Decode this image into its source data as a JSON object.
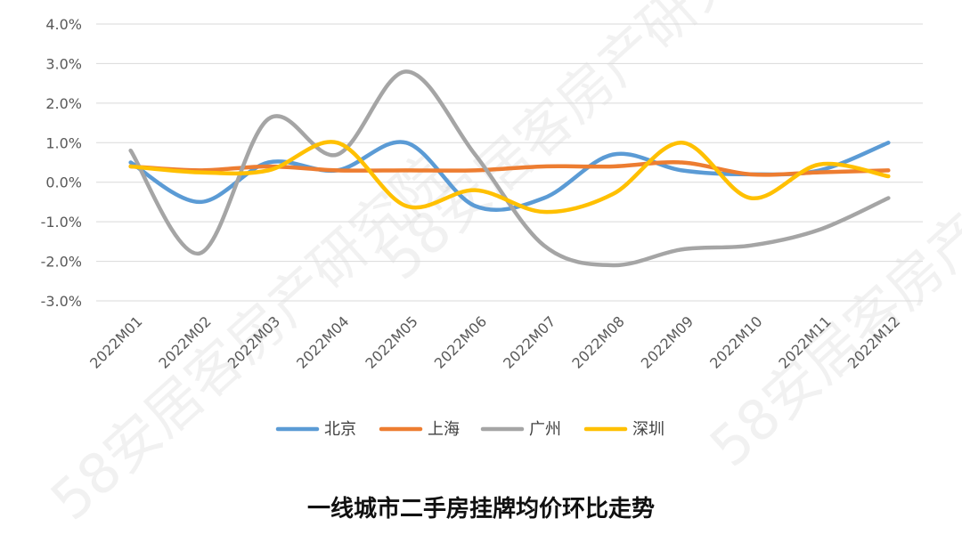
{
  "watermark": "58安居客房产研究院",
  "chart_data": {
    "type": "line",
    "title": "一线城市二手房挂牌均价环比走势",
    "xlabel": "",
    "ylabel": "",
    "ylim": [
      -3.0,
      4.0
    ],
    "yticks": [
      "-3.0%",
      "-2.0%",
      "-1.0%",
      "0.0%",
      "1.0%",
      "2.0%",
      "3.0%",
      "4.0%"
    ],
    "grid": true,
    "legend_position": "bottom",
    "categories": [
      "2022M01",
      "2022M02",
      "2022M03",
      "2022M04",
      "2022M05",
      "2022M06",
      "2022M07",
      "2022M08",
      "2022M09",
      "2022M10",
      "2022M11",
      "2022M12"
    ],
    "series": [
      {
        "name": "北京",
        "color": "#5B9BD5",
        "values": [
          0.5,
          -0.5,
          0.5,
          0.3,
          1.0,
          -0.6,
          -0.4,
          0.7,
          0.3,
          0.2,
          0.3,
          1.0
        ]
      },
      {
        "name": "上海",
        "color": "#ED7D31",
        "values": [
          0.4,
          0.3,
          0.4,
          0.3,
          0.3,
          0.3,
          0.4,
          0.4,
          0.5,
          0.2,
          0.25,
          0.3
        ]
      },
      {
        "name": "广州",
        "color": "#A5A5A5",
        "values": [
          0.8,
          -1.8,
          1.6,
          0.7,
          2.8,
          0.7,
          -1.6,
          -2.1,
          -1.7,
          -1.6,
          -1.2,
          -0.4
        ]
      },
      {
        "name": "深圳",
        "color": "#FFC000",
        "values": [
          0.4,
          0.25,
          0.3,
          1.0,
          -0.6,
          -0.2,
          -0.75,
          -0.3,
          1.0,
          -0.4,
          0.45,
          0.15
        ]
      }
    ]
  }
}
